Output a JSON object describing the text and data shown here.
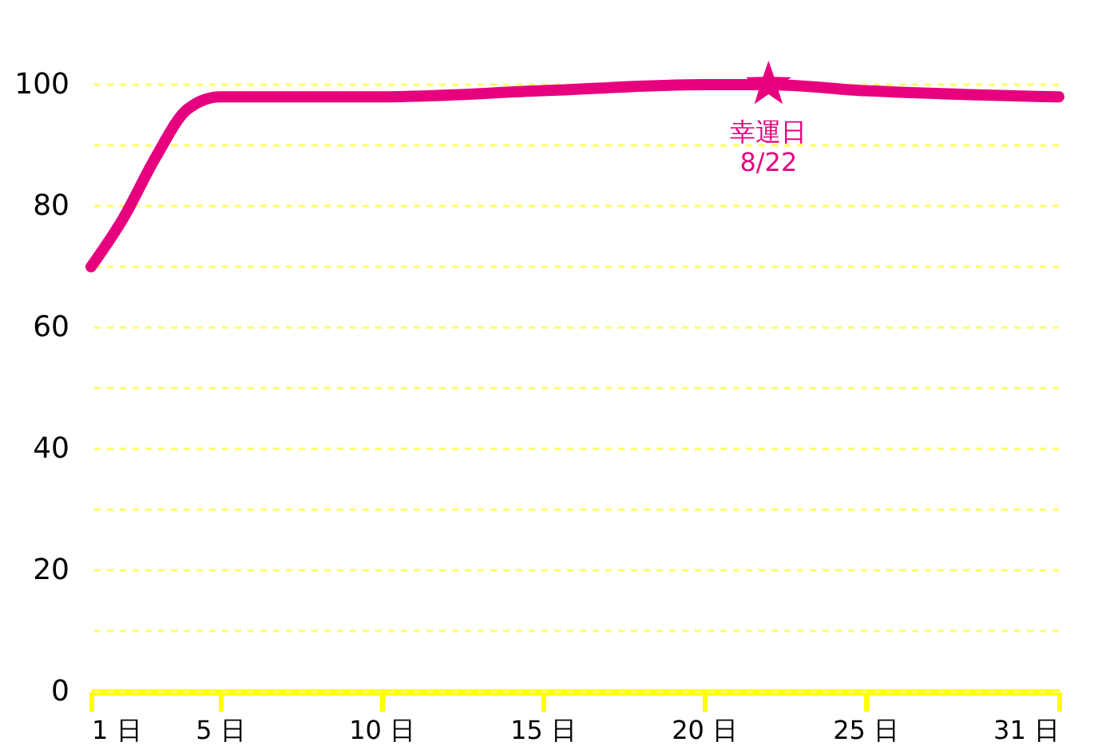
{
  "chart_data": {
    "type": "line",
    "xlim": [
      1,
      31
    ],
    "ylim": [
      0,
      100
    ],
    "xticks": [
      {
        "value": 1,
        "label": "1 日"
      },
      {
        "value": 5,
        "label": "5 日"
      },
      {
        "value": 10,
        "label": "10 日"
      },
      {
        "value": 15,
        "label": "15 日"
      },
      {
        "value": 20,
        "label": "20 日"
      },
      {
        "value": 25,
        "label": "25 日"
      },
      {
        "value": 31,
        "label": "31 日"
      }
    ],
    "yticks": [
      0,
      {
        "value": 10,
        "label": null
      },
      20,
      {
        "value": 30,
        "label": null
      },
      40,
      {
        "value": 50,
        "label": null
      },
      60,
      {
        "value": 70,
        "label": null
      },
      80,
      {
        "value": 90,
        "label": null
      },
      100
    ],
    "grid": "y",
    "line_style": "solid",
    "series": [
      {
        "color": "#e6007e",
        "marker": "none",
        "x": [
          1,
          2,
          3,
          4,
          5,
          10,
          15,
          20,
          22,
          25,
          31
        ],
        "values": [
          70,
          78,
          88,
          96,
          98,
          98,
          99,
          100,
          100,
          99,
          98
        ]
      },
      {
        "type": "scatter",
        "color": "#e6007e",
        "marker": "star",
        "x": [
          22
        ],
        "values": [
          100
        ]
      }
    ],
    "annotations": [
      {
        "text": "幸運日\n8/22",
        "x": 22,
        "y": 100
      }
    ]
  }
}
